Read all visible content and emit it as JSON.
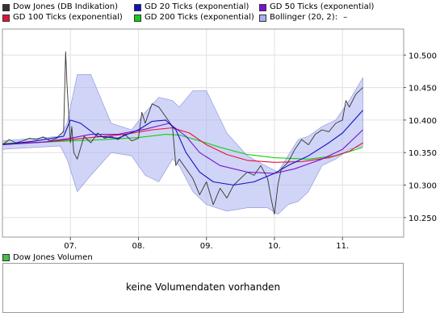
{
  "legend": [
    {
      "label": "Dow Jones (DB Indikation)",
      "color": "#333333",
      "icon": "line-swatch"
    },
    {
      "label": "GD 20 Ticks (exponential)",
      "color": "#1010c8",
      "icon": "line-swatch"
    },
    {
      "label": "GD 50 Ticks (exponential)",
      "color": "#7a10d0",
      "icon": "line-swatch"
    },
    {
      "label": "GD 100 Ticks (exponential)",
      "color": "#e8103a",
      "icon": "line-swatch"
    },
    {
      "label": "GD 200 Ticks (exponential)",
      "color": "#10d010",
      "icon": "line-swatch"
    },
    {
      "label": "Bollinger (20, 2):",
      "color": "#aab0ee",
      "icon": "band-swatch",
      "suffix": "–"
    }
  ],
  "volume": {
    "legend_label": "Dow Jones Volumen",
    "legend_color": "#44c044",
    "message": "keine Volumendaten vorhanden"
  },
  "chart_data": {
    "type": "line",
    "title": "",
    "xlabel": "",
    "ylabel": "",
    "x_ticks": [
      "07.",
      "08.",
      "09.",
      "10.",
      "11."
    ],
    "x_tick_positions": [
      1,
      2,
      3,
      4,
      5
    ],
    "xlim": [
      0.0,
      5.9
    ],
    "y_ticks": [
      10250,
      10300,
      10350,
      10400,
      10450,
      10500
    ],
    "y_tick_labels": [
      "10.250",
      "10.300",
      "10.350",
      "10.400",
      "10.450",
      "10.500"
    ],
    "ylim": [
      10220,
      10540
    ],
    "grid": true,
    "series": [
      {
        "name": "Bollinger (20, 2):",
        "kind": "band",
        "color": "#aab0ee",
        "x": [
          0.0,
          0.5,
          0.85,
          0.95,
          1.1,
          1.3,
          1.6,
          1.9,
          2.1,
          2.3,
          2.5,
          2.6,
          2.8,
          3.0,
          3.3,
          3.6,
          3.9,
          4.05,
          4.2,
          4.35,
          4.5,
          4.7,
          4.9,
          5.1,
          5.3
        ],
        "upper": [
          10368,
          10372,
          10375,
          10395,
          10470,
          10470,
          10395,
          10385,
          10412,
          10435,
          10430,
          10420,
          10445,
          10445,
          10380,
          10345,
          10328,
          10320,
          10345,
          10370,
          10375,
          10390,
          10400,
          10430,
          10465
        ],
        "lower": [
          10355,
          10358,
          10360,
          10340,
          10290,
          10315,
          10350,
          10345,
          10315,
          10305,
          10340,
          10330,
          10290,
          10270,
          10260,
          10265,
          10265,
          10255,
          10270,
          10275,
          10290,
          10330,
          10340,
          10355,
          10360
        ]
      },
      {
        "name": "Dow Jones (DB Indikation)",
        "kind": "line",
        "color": "#333333",
        "x": [
          0.0,
          0.1,
          0.2,
          0.3,
          0.4,
          0.5,
          0.6,
          0.7,
          0.8,
          0.85,
          0.9,
          0.93,
          0.95,
          0.98,
          1.0,
          1.02,
          1.05,
          1.1,
          1.2,
          1.3,
          1.4,
          1.5,
          1.6,
          1.7,
          1.8,
          1.9,
          2.0,
          2.05,
          2.1,
          2.2,
          2.3,
          2.4,
          2.5,
          2.55,
          2.6,
          2.7,
          2.8,
          2.9,
          3.0,
          3.1,
          3.2,
          3.3,
          3.4,
          3.5,
          3.6,
          3.7,
          3.8,
          3.9,
          3.95,
          4.0,
          4.05,
          4.1,
          4.2,
          4.3,
          4.4,
          4.5,
          4.6,
          4.7,
          4.8,
          4.9,
          5.0,
          5.05,
          5.1,
          5.2,
          5.3
        ],
        "y": [
          10362,
          10370,
          10365,
          10368,
          10372,
          10370,
          10374,
          10368,
          10372,
          10378,
          10382,
          10505,
          10455,
          10400,
          10365,
          10390,
          10350,
          10340,
          10375,
          10365,
          10380,
          10372,
          10375,
          10370,
          10378,
          10368,
          10372,
          10412,
          10395,
          10425,
          10420,
          10405,
          10390,
          10330,
          10340,
          10325,
          10310,
          10285,
          10305,
          10270,
          10295,
          10280,
          10300,
          10310,
          10320,
          10315,
          10330,
          10310,
          10280,
          10255,
          10300,
          10325,
          10335,
          10355,
          10370,
          10362,
          10378,
          10385,
          10382,
          10395,
          10400,
          10430,
          10420,
          10440,
          10450
        ]
      },
      {
        "name": "GD 20 Ticks (exponential)",
        "kind": "line",
        "color": "#1010c8",
        "x": [
          0.0,
          0.5,
          0.9,
          1.0,
          1.15,
          1.4,
          1.7,
          2.0,
          2.2,
          2.4,
          2.55,
          2.7,
          2.9,
          3.1,
          3.4,
          3.7,
          4.0,
          4.2,
          4.5,
          4.8,
          5.0,
          5.3
        ],
        "y": [
          10362,
          10368,
          10375,
          10400,
          10395,
          10375,
          10372,
          10385,
          10398,
          10400,
          10385,
          10350,
          10320,
          10305,
          10300,
          10305,
          10318,
          10330,
          10345,
          10365,
          10380,
          10415
        ]
      },
      {
        "name": "GD 50 Ticks (exponential)",
        "kind": "line",
        "color": "#7a10d0",
        "x": [
          0.0,
          0.6,
          1.0,
          1.3,
          1.7,
          2.1,
          2.45,
          2.7,
          2.9,
          3.2,
          3.6,
          4.0,
          4.3,
          4.7,
          5.0,
          5.3
        ],
        "y": [
          10362,
          10366,
          10372,
          10378,
          10378,
          10386,
          10395,
          10375,
          10350,
          10330,
          10320,
          10318,
          10325,
          10340,
          10355,
          10385
        ]
      },
      {
        "name": "GD 100 Ticks (exponential)",
        "kind": "line",
        "color": "#e8103a",
        "x": [
          0.0,
          0.6,
          1.0,
          1.4,
          1.8,
          2.2,
          2.5,
          2.75,
          3.0,
          3.3,
          3.6,
          4.0,
          4.4,
          4.8,
          5.1,
          5.3
        ],
        "y": [
          10363,
          10366,
          10370,
          10374,
          10378,
          10385,
          10388,
          10380,
          10362,
          10347,
          10338,
          10335,
          10336,
          10342,
          10352,
          10365
        ]
      },
      {
        "name": "GD 200 Ticks (exponential)",
        "kind": "line",
        "color": "#10d010",
        "x": [
          0.0,
          0.6,
          1.0,
          1.5,
          2.0,
          2.4,
          2.6,
          2.9,
          3.2,
          3.6,
          4.0,
          4.5,
          4.9,
          5.3
        ],
        "y": [
          10364,
          10366,
          10368,
          10370,
          10373,
          10378,
          10377,
          10368,
          10358,
          10347,
          10342,
          10340,
          10345,
          10358
        ]
      }
    ]
  }
}
